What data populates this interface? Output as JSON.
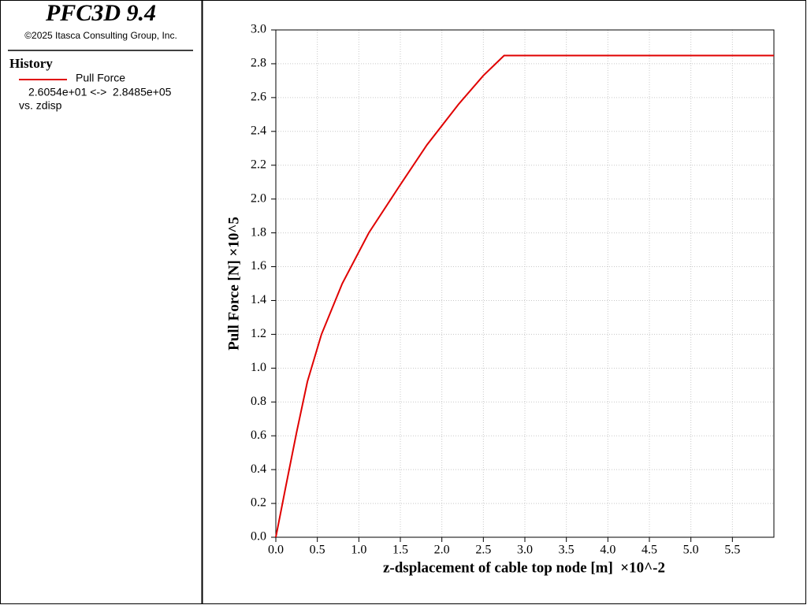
{
  "panel": {
    "title": "PFC3D 9.4",
    "copyright": "©2025 Itasca Consulting Group, Inc.",
    "history_heading": "History"
  },
  "chart_data": {
    "type": "line",
    "xlabel": "z-dsplacement of cable top node [m]  ×10^-2",
    "ylabel": "Pull Force [N] ×10^5",
    "x": [
      0,
      0.12,
      0.25,
      0.38,
      0.55,
      0.8,
      1.12,
      1.48,
      1.82,
      2.2,
      2.5,
      2.75,
      6.0
    ],
    "series": [
      {
        "name": "Pull Force",
        "color": "#e00000",
        "range_label": "2.6054e+01 <->  2.8485e+05",
        "x_label": "vs. zdisp",
        "values": [
          0.0003,
          0.3,
          0.62,
          0.92,
          1.2,
          1.5,
          1.8,
          2.07,
          2.32,
          2.56,
          2.73,
          2.8485,
          2.8485
        ]
      }
    ],
    "xlim": [
      0,
      6.0
    ],
    "ylim": [
      0,
      3.0
    ],
    "xticks": [
      {
        "value": 0,
        "label": "0.0"
      },
      0.5,
      {
        "value": 1,
        "label": "1.0"
      },
      1.5,
      {
        "value": 2,
        "label": "2.0"
      },
      2.5,
      {
        "value": 3,
        "label": "3.0"
      },
      3.5,
      {
        "value": 4,
        "label": "4.0"
      },
      4.5,
      {
        "value": 5,
        "label": "5.0"
      },
      5.5
    ],
    "yticks": [
      {
        "value": 0,
        "label": "0.0"
      },
      0.2,
      0.4,
      0.6,
      0.8,
      {
        "value": 1,
        "label": "1.0"
      },
      1.2,
      1.4,
      1.6,
      1.8,
      {
        "value": 2,
        "label": "2.0"
      },
      2.2,
      2.4,
      2.6,
      2.8,
      {
        "value": 3,
        "label": "3.0"
      }
    ],
    "grid": true
  }
}
